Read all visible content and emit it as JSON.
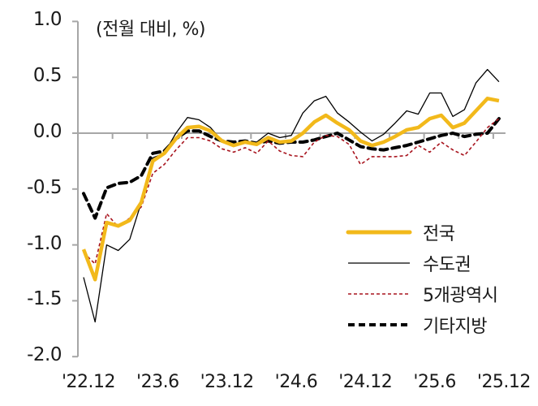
{
  "chart_data": {
    "type": "line",
    "title": "",
    "unit_label": "(전월 대비, %)",
    "xlabel": "",
    "ylabel": "전월 대비, %",
    "ylim": [
      -2.0,
      1.0
    ],
    "yticks": [
      "1.0",
      "0.5",
      "0.0",
      "-0.5",
      "-1.0",
      "-1.5",
      "-2.0"
    ],
    "x_tick_labels": [
      "'22.12",
      "'23.6",
      "'23.12",
      "'24.6",
      "'24.12",
      "'25.6",
      "'25.12"
    ],
    "x": [
      "22.12",
      "23.01",
      "23.02",
      "23.03",
      "23.04",
      "23.05",
      "23.06",
      "23.07",
      "23.08",
      "23.09",
      "23.10",
      "23.11",
      "23.12",
      "24.01",
      "24.02",
      "24.03",
      "24.04",
      "24.05",
      "24.06",
      "24.07",
      "24.08",
      "24.09",
      "24.10",
      "24.11",
      "24.12",
      "25.01",
      "25.02",
      "25.03",
      "25.04",
      "25.05",
      "25.06",
      "25.07",
      "25.08",
      "25.09",
      "25.10",
      "25.11",
      "25.12"
    ],
    "grid": false,
    "legend_position": "lower right",
    "series": [
      {
        "name": "전국",
        "color": "#F2B91B",
        "style": "solid-thick",
        "values": [
          -1.04,
          -1.31,
          -0.8,
          -0.83,
          -0.78,
          -0.62,
          -0.25,
          -0.18,
          -0.05,
          0.05,
          0.06,
          0.02,
          -0.07,
          -0.11,
          -0.08,
          -0.1,
          -0.04,
          -0.08,
          -0.07,
          0.0,
          0.1,
          0.16,
          0.09,
          0.03,
          -0.07,
          -0.11,
          -0.08,
          -0.03,
          0.03,
          0.05,
          0.13,
          0.16,
          0.05,
          0.09,
          0.2,
          0.31,
          0.29
        ]
      },
      {
        "name": "수도권",
        "color": "#000000",
        "style": "solid-thin",
        "values": [
          -1.29,
          -1.69,
          -1.0,
          -1.05,
          -0.95,
          -0.62,
          -0.22,
          -0.18,
          0.0,
          0.14,
          0.12,
          0.05,
          -0.07,
          -0.12,
          -0.08,
          -0.08,
          0.0,
          -0.04,
          -0.02,
          0.18,
          0.29,
          0.33,
          0.18,
          0.1,
          0.01,
          -0.07,
          -0.01,
          0.09,
          0.2,
          0.17,
          0.36,
          0.36,
          0.15,
          0.21,
          0.45,
          0.57,
          0.46
        ]
      },
      {
        "name": "5개광역시",
        "color": "#A8141E",
        "style": "dashed-thin",
        "values": [
          -1.07,
          -1.17,
          -0.72,
          -0.84,
          -0.76,
          -0.66,
          -0.36,
          -0.28,
          -0.15,
          -0.04,
          -0.04,
          -0.07,
          -0.14,
          -0.17,
          -0.13,
          -0.18,
          -0.07,
          -0.16,
          -0.2,
          -0.21,
          -0.08,
          -0.02,
          -0.03,
          -0.1,
          -0.28,
          -0.21,
          -0.21,
          -0.21,
          -0.2,
          -0.11,
          -0.17,
          -0.08,
          -0.15,
          -0.2,
          -0.08,
          0.05,
          0.13
        ]
      },
      {
        "name": "기타지방",
        "color": "#000000",
        "style": "dashed-thick",
        "values": [
          -0.54,
          -0.76,
          -0.49,
          -0.45,
          -0.44,
          -0.38,
          -0.18,
          -0.16,
          -0.05,
          0.02,
          0.02,
          -0.03,
          -0.07,
          -0.08,
          -0.07,
          -0.09,
          -0.07,
          -0.09,
          -0.08,
          -0.08,
          -0.06,
          -0.03,
          0.0,
          -0.06,
          -0.12,
          -0.14,
          -0.15,
          -0.13,
          -0.11,
          -0.08,
          -0.05,
          -0.02,
          0.0,
          -0.03,
          -0.01,
          0.0,
          0.13
        ]
      }
    ]
  },
  "axis_color": "#A6A6A6"
}
